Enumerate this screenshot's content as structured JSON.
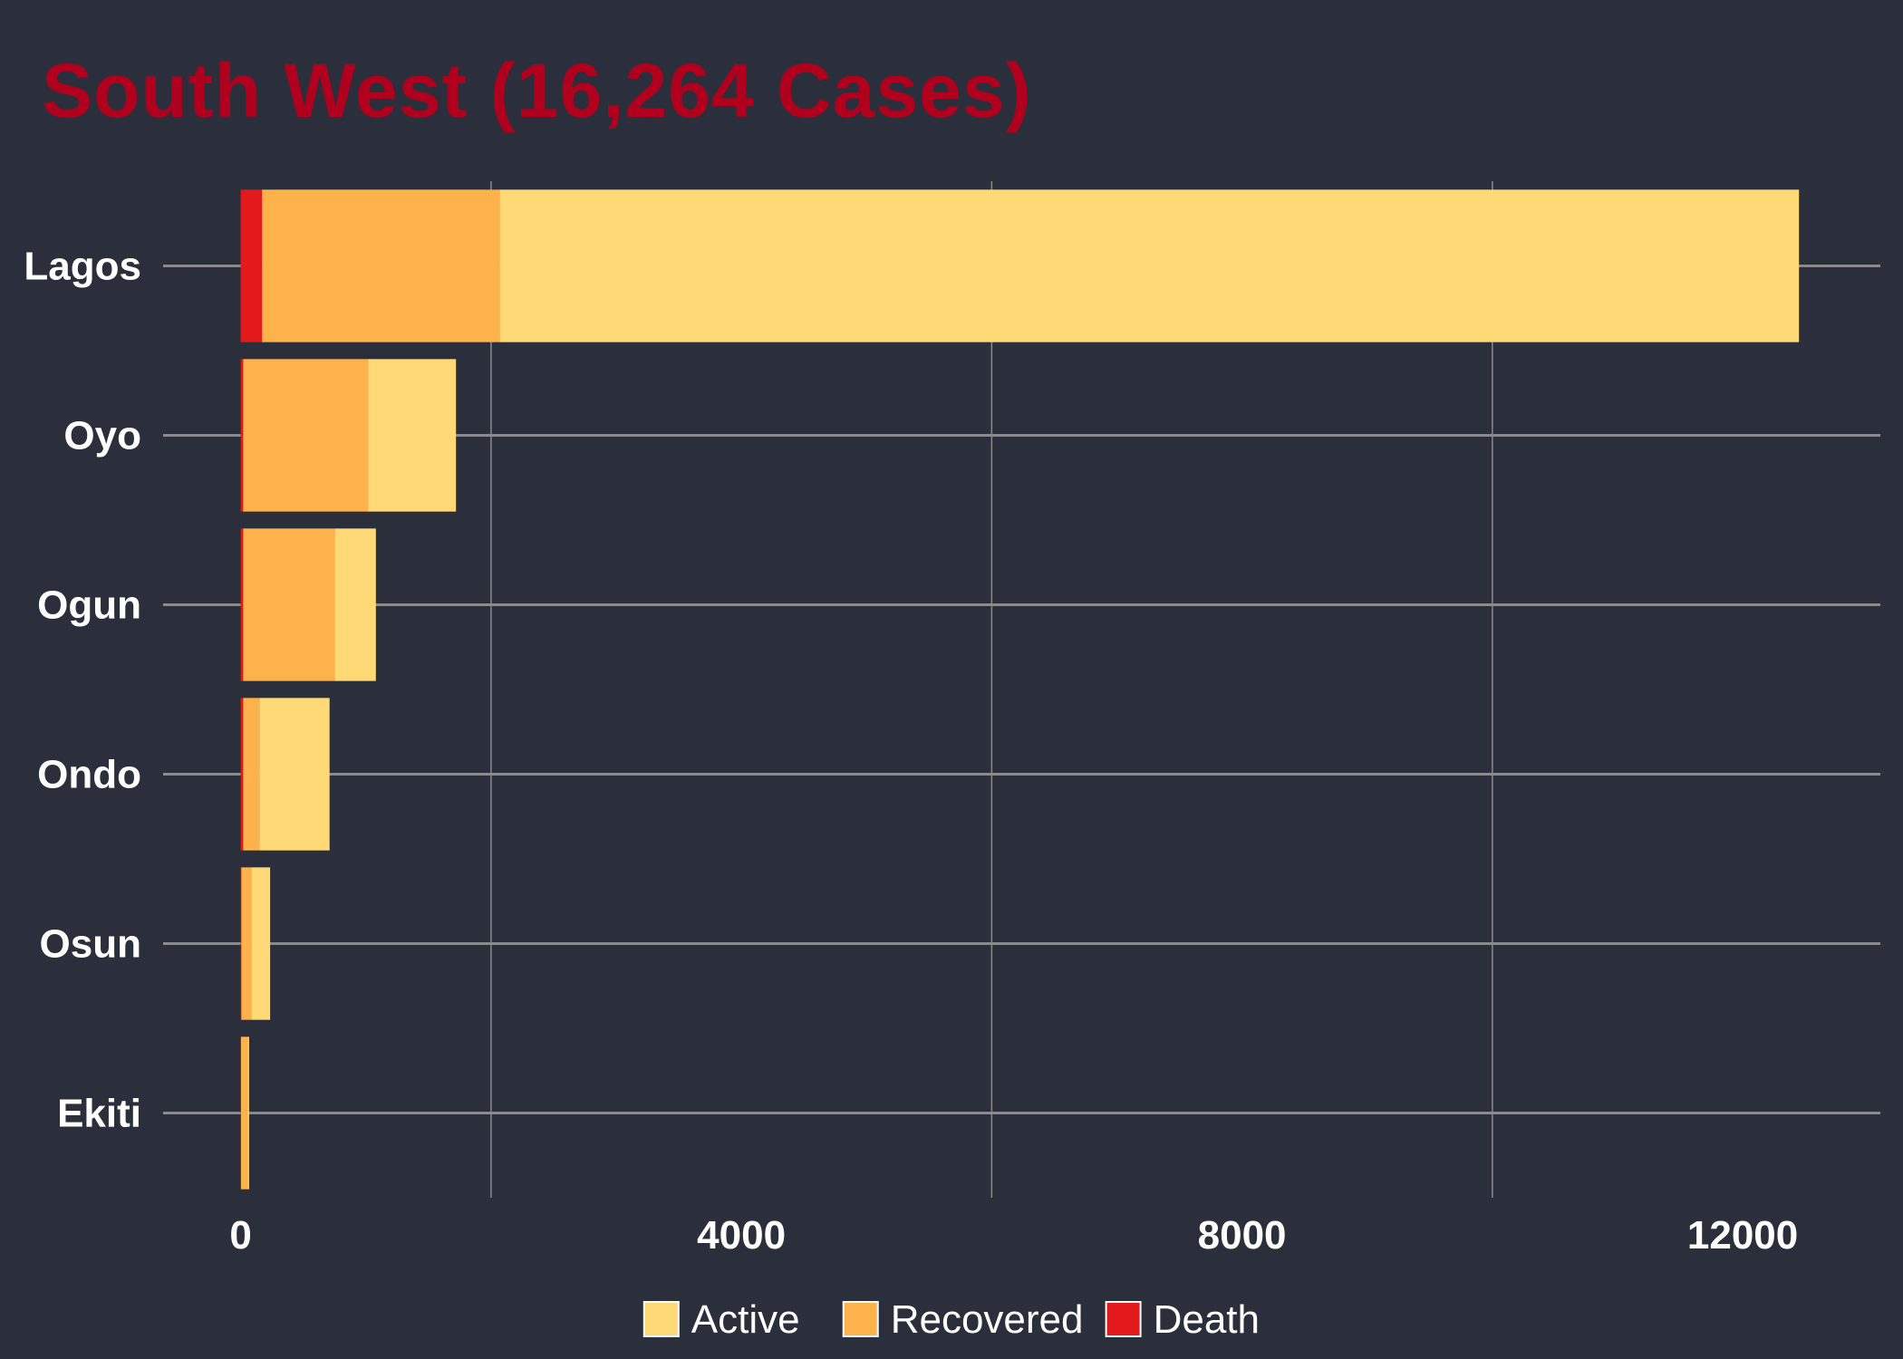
{
  "chart_data": {
    "type": "bar",
    "orientation": "horizontal",
    "stacked": true,
    "title": "South West (16,264 Cases)",
    "xlabel": "",
    "ylabel": "",
    "categories": [
      "Lagos",
      "Oyo",
      "Ogun",
      "Ondo",
      "Osun",
      "Ekiti"
    ],
    "series": [
      {
        "name": "Death",
        "color": "#e31a1c",
        "values": [
          170,
          20,
          20,
          20,
          5,
          2
        ]
      },
      {
        "name": "Recovered",
        "color": "#feb24c",
        "values": [
          1900,
          1000,
          730,
          130,
          80,
          55
        ]
      },
      {
        "name": "Active",
        "color": "#fed976",
        "values": [
          10380,
          700,
          330,
          560,
          150,
          10
        ]
      }
    ],
    "xlim": [
      -620,
      13100
    ],
    "xticks": [
      0,
      4000,
      8000,
      12000
    ],
    "xtick_labels": [
      "0",
      "4000",
      "8000",
      "12000"
    ],
    "legend": {
      "position": "bottom",
      "order": [
        "Active",
        "Recovered",
        "Death"
      ]
    },
    "grid": true,
    "colors": {
      "background": "#2a2f3b",
      "grid": "#8a8a8a",
      "title": "#b0001e",
      "text": "#ffffff"
    }
  }
}
